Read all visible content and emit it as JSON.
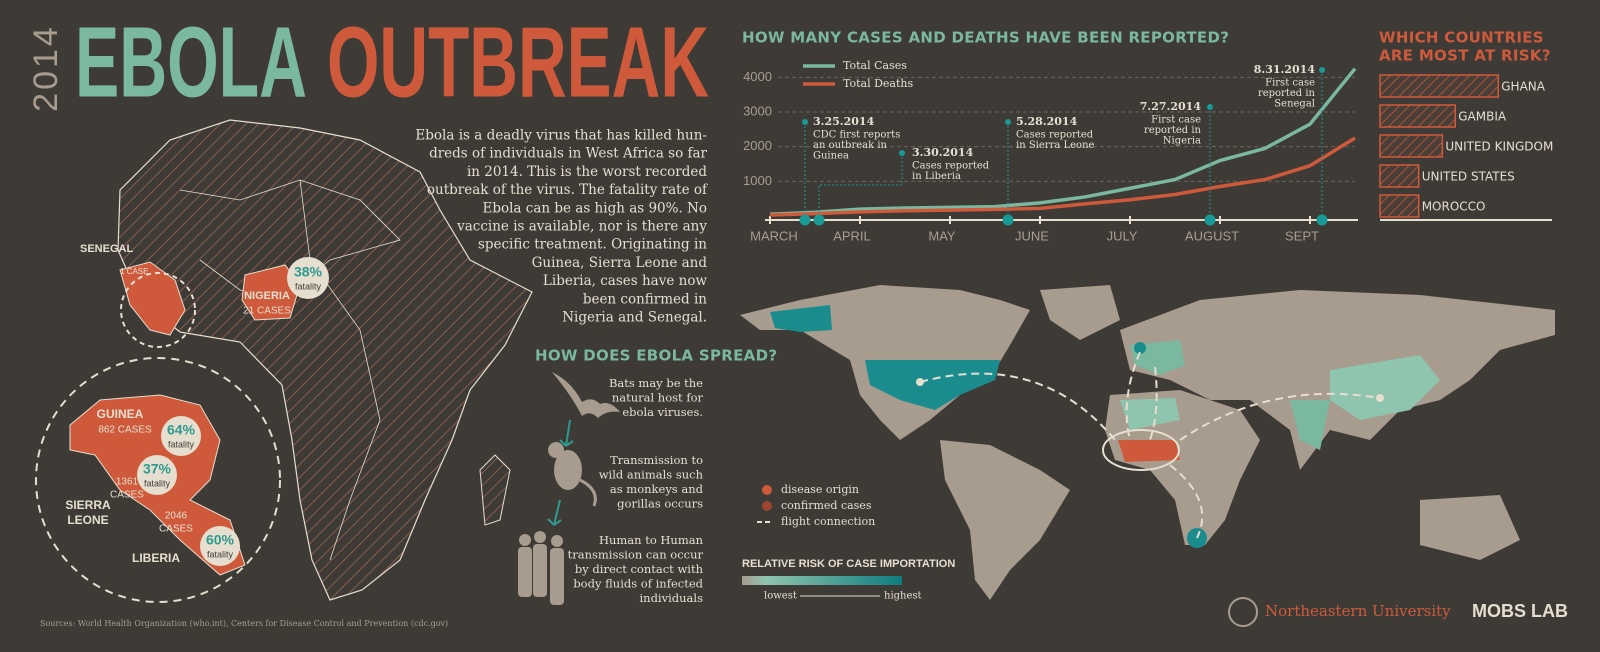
{
  "header": {
    "year": "2014",
    "title_part1": "EBOLA",
    "title_part2": "OUTBREAK"
  },
  "intro": {
    "lines": [
      "Ebola is a deadly virus that has killed hun-",
      "dreds of individuals in West Africa so far",
      "in 2014. This is the worst recorded",
      "outbreak of the virus. The fatality rate of",
      "Ebola can be as high as 90%. No",
      "vaccine is available, nor is there any",
      "specific treatment. Originating in",
      "Guinea, Sierra Leone and",
      "Liberia, cases have now",
      "been confirmed in",
      "Nigeria and Senegal."
    ]
  },
  "africa_map": {
    "fatality_label": "fatality",
    "senegal": {
      "name": "SENEGAL",
      "cases": "1 CASE"
    },
    "nigeria": {
      "name": "NIGERIA",
      "cases": "21 CASES",
      "fatality": "38%"
    },
    "guinea": {
      "name": "GUINEA",
      "cases": "862 CASES",
      "fatality": "64%"
    },
    "sierra_leone": {
      "name_lines": [
        "SIERRA",
        "LEONE"
      ],
      "cases_lines": [
        "1361",
        "CASES"
      ],
      "fatality": "37%"
    },
    "liberia": {
      "name": "LIBERIA",
      "cases_lines": [
        "2046",
        "CASES"
      ],
      "fatality": "60%"
    }
  },
  "spread": {
    "title": "HOW DOES EBOLA SPREAD?",
    "steps": [
      {
        "lines": [
          "Bats may be the",
          "natural host for",
          "ebola viruses."
        ]
      },
      {
        "lines": [
          "Transmission to",
          "wild animals such",
          "as  monkeys and",
          "gorillas occurs"
        ]
      },
      {
        "lines": [
          "Human to Human",
          "transmission can occur",
          "by direct contact with",
          "body fluids of infected",
          "individuals"
        ]
      }
    ]
  },
  "chart_data": [
    {
      "type": "line",
      "title": "HOW MANY CASES AND DEATHS HAVE BEEN REPORTED?",
      "categories": [
        "MARCH",
        null,
        "APRIL",
        null,
        "MAY",
        null,
        "JUNE",
        null,
        "JULY",
        null,
        "AUGUST",
        null,
        "SEPT",
        null
      ],
      "series": [
        {
          "name": "Total Cases",
          "color": "#7ab8a0",
          "values": [
            50,
            110,
            200,
            230,
            250,
            270,
            380,
            550,
            800,
            1050,
            1600,
            1950,
            2650,
            4250
          ]
        },
        {
          "name": "Total Deaths",
          "color": "#cf5a3b",
          "values": [
            30,
            70,
            120,
            150,
            170,
            190,
            220,
            350,
            470,
            620,
            850,
            1050,
            1450,
            2250
          ]
        }
      ],
      "ylim": [
        0,
        4500
      ],
      "yticks": [
        1000,
        2000,
        3000,
        4000
      ],
      "grid": true,
      "annotations": [
        {
          "date": "3.25.2014",
          "lines": [
            "CDC first reports",
            "an outbreak in",
            "Guinea"
          ]
        },
        {
          "date": "3.30.2014",
          "lines": [
            "Cases reported",
            "in Liberia"
          ]
        },
        {
          "date": "5.28.2014",
          "lines": [
            "Cases reported",
            "in Sierra Leone"
          ]
        },
        {
          "date": "7.27.2014",
          "lines": [
            "First case",
            "reported in",
            "Nigeria"
          ]
        },
        {
          "date": "8.31.2014",
          "lines": [
            "First case",
            "reported in",
            "Senegal"
          ]
        }
      ]
    },
    {
      "type": "bar",
      "orientation": "horizontal",
      "title_lines": [
        "WHICH COUNTRIES",
        "ARE MOST AT RISK?"
      ],
      "categories": [
        "GHANA",
        "GAMBIA",
        "UNITED KINGDOM",
        "UNITED STATES",
        "MOROCCO"
      ],
      "values": [
        2.75,
        1.75,
        1.45,
        0.9,
        0.9
      ],
      "color": "#cf5a3b",
      "xlim": [
        0,
        4
      ]
    }
  ],
  "world_map": {
    "legend": [
      "disease origin",
      "confirmed cases",
      "flight connection"
    ],
    "risk_title": "RELATIVE RISK OF CASE IMPORTATION",
    "risk_low": "lowest",
    "risk_high": "highest"
  },
  "footer": {
    "sources": "Sources: World Health Organization (who.int), Centers for Disease Control and Prevention (cdc.gov)",
    "university": "Northeastern University",
    "lab": "MOBS LAB"
  }
}
